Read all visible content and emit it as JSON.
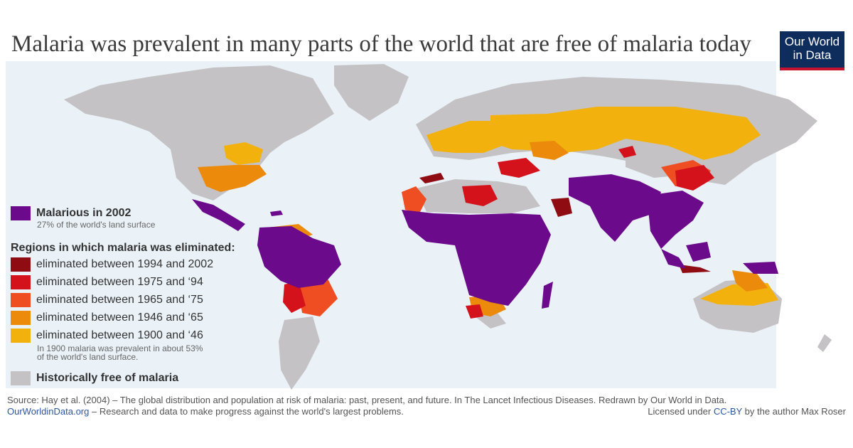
{
  "title": "Malaria was prevalent in many parts of the world that are free of malaria today",
  "logo": {
    "line1": "Our World",
    "line2": "in Data"
  },
  "legend": {
    "malarious": {
      "label": "Malarious in 2002",
      "sub": "27% of the world's land surface",
      "color": "#6b0a8b"
    },
    "eliminated_heading": "Regions in which malaria was eliminated:",
    "items": [
      {
        "label": "eliminated between 1994 and 2002",
        "color": "#8f0c12"
      },
      {
        "label": "eliminated between 1975 and ‘94",
        "color": "#d4121c"
      },
      {
        "label": "eliminated between 1965 and ‘75",
        "color": "#ef4e22"
      },
      {
        "label": "eliminated between 1946 and ‘65",
        "color": "#ec8a0b"
      },
      {
        "label": "eliminated between 1900 and ‘46",
        "color": "#f2b10d"
      }
    ],
    "note_line1": "In 1900 malaria was prevalent in about 53%",
    "note_line2": "of the world's land surface.",
    "free": {
      "label": "Historically free of malaria",
      "color": "#c4c2c4"
    }
  },
  "footer": {
    "source": "Source: Hay et al. (2004) – The global distribution and population at risk of malaria: past, present, and future. In The Lancet Infectious Diseases. Redrawn by Our World in Data.",
    "site_link": "OurWorldinData.org",
    "site_tagline": " – Research and data to make progress against the world's largest problems.",
    "license_prefix": "Licensed under ",
    "license_link": "CC-BY",
    "license_suffix": " by the author Max Roser"
  }
}
